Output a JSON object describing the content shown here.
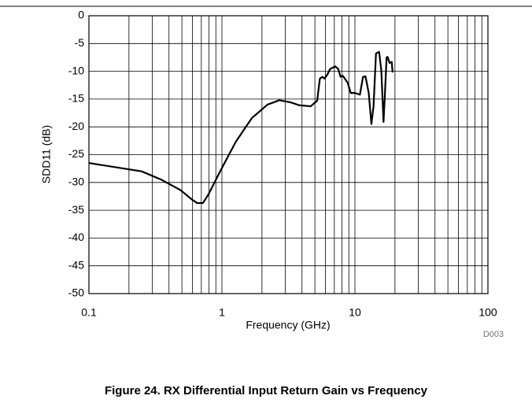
{
  "chart_data": {
    "type": "line",
    "xlabel": "Frequency (GHz)",
    "ylabel": "SDD11 (dB)",
    "annotation": "D003",
    "caption": "Figure 24. RX Differential Input Return Gain vs Frequency",
    "log_x": true,
    "grid": true,
    "xlim": [
      0.1,
      100
    ],
    "xticks": [
      0.1,
      1,
      10,
      100
    ],
    "ylim": [
      -50,
      0
    ],
    "yticks": [
      0,
      -5,
      -10,
      -15,
      -20,
      -25,
      -30,
      -35,
      -40,
      -45,
      -50
    ],
    "series": [
      {
        "color": "#000000",
        "x": [
          0.1,
          0.249,
          0.35,
          0.49,
          0.59,
          0.65,
          0.72,
          0.79,
          0.97,
          1.27,
          1.68,
          2.2,
          2.7,
          3.3,
          3.8,
          4.65,
          5.2,
          5.45,
          5.7,
          5.9,
          6.2,
          6.5,
          7.1,
          7.5,
          7.8,
          8.1,
          8.8,
          9.3,
          10.0,
          10.9,
          11.5,
          12.0,
          12.7,
          13.3,
          13.8,
          14.4,
          15.2,
          15.8,
          16.4,
          16.8,
          17.3,
          17.6,
          18.2,
          18.9,
          19.2
        ],
        "values": [
          -26.5,
          -28,
          -29.5,
          -31.4,
          -33,
          -33.7,
          -33.7,
          -32.2,
          -28,
          -22.7,
          -18.4,
          -16,
          -15.2,
          -15.6,
          -16.1,
          -16.3,
          -15.3,
          -11.3,
          -11,
          -11.3,
          -10.6,
          -9.6,
          -9.1,
          -9.6,
          -11,
          -10.8,
          -12,
          -13.9,
          -13.9,
          -14.2,
          -11,
          -10.9,
          -13.9,
          -19.5,
          -16.3,
          -6.8,
          -6.5,
          -9.9,
          -19.1,
          -14.2,
          -7.5,
          -7.4,
          -8.5,
          -8.3,
          -10.2
        ]
      }
    ]
  }
}
